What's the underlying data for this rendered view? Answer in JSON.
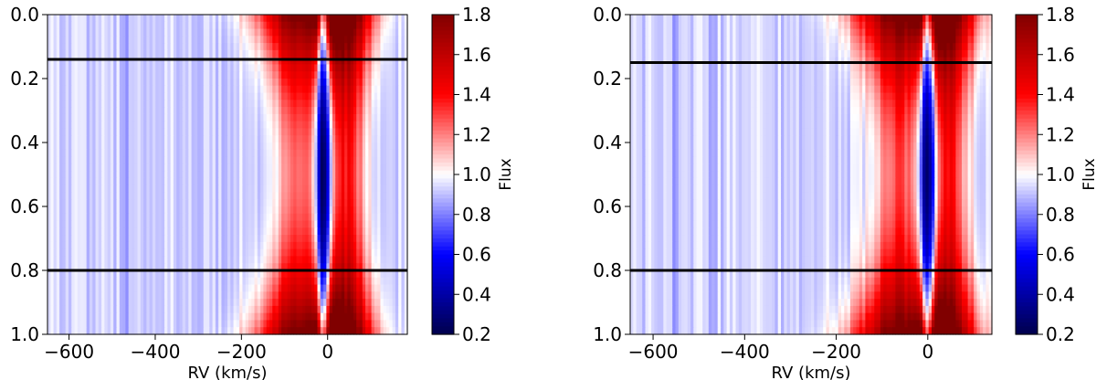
{
  "chart_data": [
    {
      "type": "heatmap",
      "xlabel": "RV (km/s)",
      "ylabel": "",
      "xlim": [
        -650,
        185
      ],
      "ylim": [
        1.0,
        0.0
      ],
      "x_ticks": [
        -600,
        -400,
        -200,
        0
      ],
      "x_tick_labels": [
        "−600",
        "−400",
        "−200",
        "0"
      ],
      "y_ticks": [
        0.0,
        0.2,
        0.4,
        0.6,
        0.8,
        1.0
      ],
      "y_tick_labels": [
        "0.0",
        "0.2",
        "0.4",
        "0.6",
        "0.8",
        "1.0"
      ],
      "hlines": [
        0.14,
        0.8
      ],
      "colorbar": {
        "label": "Flux",
        "range": [
          0.2,
          1.8
        ],
        "ticks": [
          0.2,
          0.4,
          0.6,
          0.8,
          1.0,
          1.2,
          1.4,
          1.6,
          1.8
        ],
        "tick_labels": [
          "0.2",
          "0.4",
          "0.6",
          "0.8",
          "1.0",
          "1.2",
          "1.4",
          "1.6",
          "1.8"
        ],
        "colormap": "seismic"
      },
      "features": {
        "absorption_center_rv": -10,
        "absorption_min_flux": 0.35,
        "blue_emission_rv": -60,
        "red_emission_rv": 45,
        "emission_peak_flux": 1.8
      }
    },
    {
      "type": "heatmap",
      "xlabel": "RV (km/s)",
      "ylabel": "",
      "xlim": [
        -650,
        140
      ],
      "ylim": [
        1.0,
        0.0
      ],
      "x_ticks": [
        -600,
        -400,
        -200,
        0
      ],
      "x_tick_labels": [
        "−600",
        "−400",
        "−200",
        "0"
      ],
      "y_ticks": [
        0.0,
        0.2,
        0.4,
        0.6,
        0.8,
        1.0
      ],
      "y_tick_labels": [
        "0.0",
        "0.2",
        "0.4",
        "0.6",
        "0.8",
        "1.0"
      ],
      "hlines": [
        0.15,
        0.8
      ],
      "colorbar": {
        "label": "Flux",
        "range": [
          0.2,
          1.8
        ],
        "ticks": [
          0.2,
          0.4,
          0.6,
          0.8,
          1.0,
          1.2,
          1.4,
          1.6,
          1.8
        ],
        "tick_labels": [
          "0.2",
          "0.4",
          "0.6",
          "0.8",
          "1.0",
          "1.2",
          "1.4",
          "1.6",
          "1.8"
        ],
        "colormap": "seismic"
      },
      "features": {
        "absorption_center_rv": 0,
        "absorption_min_flux": 0.3,
        "blue_emission_rv": -60,
        "red_emission_rv": 45,
        "emission_peak_flux": 1.8
      }
    }
  ]
}
